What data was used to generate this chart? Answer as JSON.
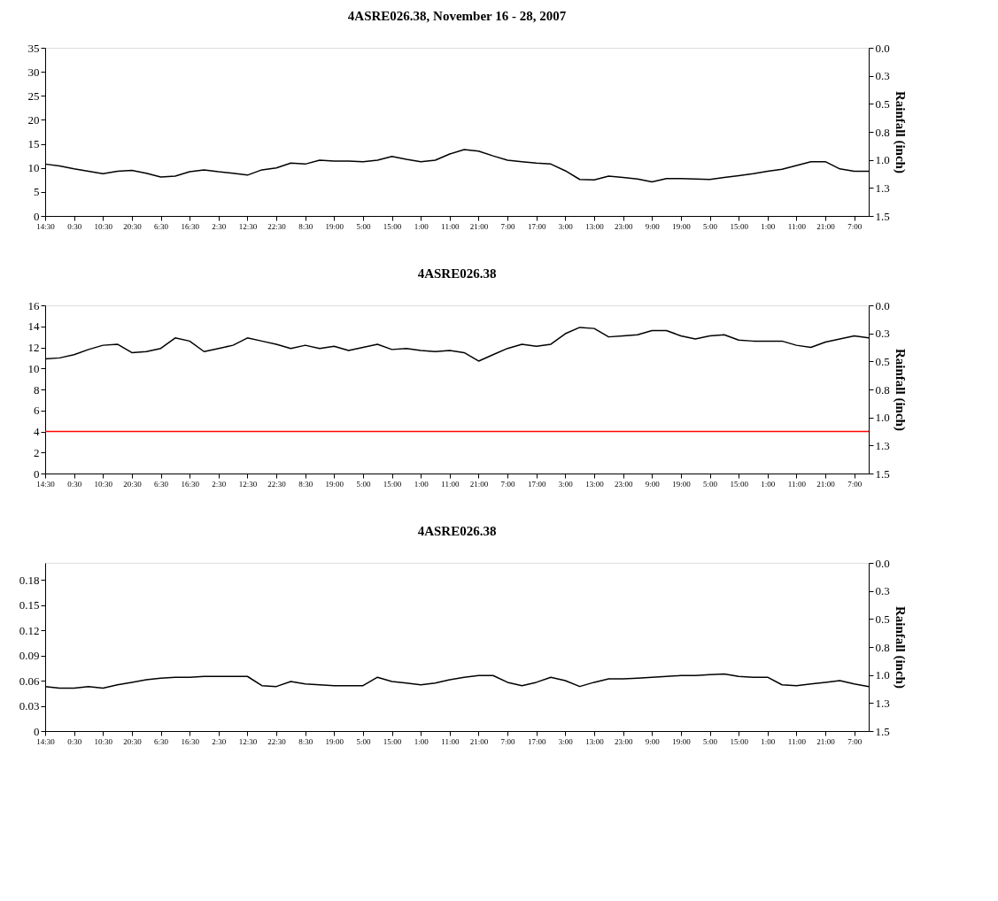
{
  "chart_data": [
    {
      "type": "line",
      "title": "4ASRE026.38, November 16 - 28, 2007",
      "y2label": "Rainfall (inch)",
      "grid": false,
      "categories": [
        "14:30",
        null,
        "0:30",
        null,
        "10:30",
        null,
        "20:30",
        null,
        "6:30",
        null,
        "16:30",
        null,
        "2:30",
        null,
        "12:30",
        null,
        "22:30",
        null,
        "8:30",
        null,
        "19:00",
        null,
        "5:00",
        null,
        "15:00",
        null,
        "1:00",
        null,
        "11:00",
        null,
        "21:00",
        null,
        "7:00",
        null,
        "17:00",
        null,
        "3:00",
        null,
        "13:00",
        null,
        "23:00",
        null,
        "9:00",
        null,
        "19:00",
        null,
        "5:00",
        null,
        "15:00",
        null,
        "1:00",
        null,
        "11:00",
        null,
        "21:00",
        null,
        "7:00",
        null
      ],
      "ylim": [
        0,
        35
      ],
      "yticks": [
        0,
        5,
        10,
        15,
        20,
        25,
        30,
        35
      ],
      "y2lim": [
        1.5,
        0
      ],
      "y2ticks": [
        {
          "value": 0,
          "label": "0.0"
        },
        {
          "value": 0.25,
          "label": "0.3"
        },
        {
          "value": 0.5,
          "label": "0.5"
        },
        {
          "value": 0.75,
          "label": "0.8"
        },
        {
          "value": 1,
          "label": "1.0"
        },
        {
          "value": 1.25,
          "label": "1.3"
        },
        {
          "value": 1.5,
          "label": "1.5"
        }
      ],
      "series": [
        {
          "color": "#000000",
          "values": [
            10.8,
            10.4,
            9.8,
            9.3,
            8.8,
            9.3,
            9.5,
            8.9,
            8.1,
            8.3,
            9.2,
            9.6,
            9.2,
            8.9,
            8.5,
            9.6,
            10.0,
            11.0,
            10.8,
            11.6,
            11.4,
            11.4,
            11.3,
            11.6,
            12.4,
            11.8,
            11.3,
            11.6,
            12.9,
            13.8,
            13.5,
            12.5,
            11.6,
            11.3,
            11.0,
            10.8,
            9.4,
            7.6,
            7.5,
            8.3,
            8.0,
            7.7,
            7.1,
            7.8,
            7.8,
            7.7,
            7.6,
            8.0,
            8.4,
            8.8,
            9.3,
            9.7,
            10.5,
            11.3,
            11.3,
            9.8,
            9.3,
            9.3
          ]
        }
      ]
    },
    {
      "type": "line",
      "title": "4ASRE026.38",
      "y2label": "Rainfall (inch)",
      "grid": false,
      "categories": [
        "14:30",
        null,
        "0:30",
        null,
        "10:30",
        null,
        "20:30",
        null,
        "6:30",
        null,
        "16:30",
        null,
        "2:30",
        null,
        "12:30",
        null,
        "22:30",
        null,
        "8:30",
        null,
        "19:00",
        null,
        "5:00",
        null,
        "15:00",
        null,
        "1:00",
        null,
        "11:00",
        null,
        "21:00",
        null,
        "7:00",
        null,
        "17:00",
        null,
        "3:00",
        null,
        "13:00",
        null,
        "23:00",
        null,
        "9:00",
        null,
        "19:00",
        null,
        "5:00",
        null,
        "15:00",
        null,
        "1:00",
        null,
        "11:00",
        null,
        "21:00",
        null,
        "7:00",
        null
      ],
      "ylim": [
        0,
        16
      ],
      "yticks": [
        0,
        2,
        4,
        6,
        8,
        10,
        12,
        14,
        16
      ],
      "y2lim": [
        1.5,
        0
      ],
      "y2ticks": [
        {
          "value": 0,
          "label": "0.0"
        },
        {
          "value": 0.25,
          "label": "0.3"
        },
        {
          "value": 0.5,
          "label": "0.5"
        },
        {
          "value": 0.75,
          "label": "0.8"
        },
        {
          "value": 1,
          "label": "1.0"
        },
        {
          "value": 1.25,
          "label": "1.3"
        },
        {
          "value": 1.5,
          "label": "1.5"
        }
      ],
      "ref_lines": [
        {
          "axis": "y",
          "value": 4,
          "color": "#ff0000"
        }
      ],
      "series": [
        {
          "color": "#000000",
          "values": [
            10.9,
            11.0,
            11.3,
            11.8,
            12.2,
            12.3,
            11.5,
            11.6,
            11.9,
            12.9,
            12.6,
            11.6,
            11.9,
            12.2,
            12.9,
            12.6,
            12.3,
            11.9,
            12.2,
            11.9,
            12.1,
            11.7,
            12.0,
            12.3,
            11.8,
            11.9,
            11.7,
            11.6,
            11.7,
            11.5,
            10.7,
            11.3,
            11.9,
            12.3,
            12.1,
            12.3,
            13.3,
            13.9,
            13.8,
            13.0,
            13.1,
            13.2,
            13.6,
            13.6,
            13.1,
            12.8,
            13.1,
            13.2,
            12.7,
            12.6,
            12.6,
            12.6,
            12.2,
            12.0,
            12.5,
            12.8,
            13.1,
            12.9
          ]
        }
      ]
    },
    {
      "type": "line",
      "title": "4ASRE026.38",
      "y2label": "Rainfall (inch)",
      "grid": false,
      "categories": [
        "14:30",
        null,
        "0:30",
        null,
        "10:30",
        null,
        "20:30",
        null,
        "6:30",
        null,
        "16:30",
        null,
        "2:30",
        null,
        "12:30",
        null,
        "22:30",
        null,
        "8:30",
        null,
        "19:00",
        null,
        "5:00",
        null,
        "15:00",
        null,
        "1:00",
        null,
        "11:00",
        null,
        "21:00",
        null,
        "7:00",
        null,
        "17:00",
        null,
        "3:00",
        null,
        "13:00",
        null,
        "23:00",
        null,
        "9:00",
        null,
        "19:00",
        null,
        "5:00",
        null,
        "15:00",
        null,
        "1:00",
        null,
        "11:00",
        null,
        "21:00",
        null,
        "7:00",
        null
      ],
      "ylim": [
        0,
        0.2
      ],
      "yticks": [
        0,
        0.03,
        0.06,
        0.09,
        0.12,
        0.15,
        0.18
      ],
      "y2lim": [
        1.5,
        0
      ],
      "y2ticks": [
        {
          "value": 0,
          "label": "0.0"
        },
        {
          "value": 0.25,
          "label": "0.3"
        },
        {
          "value": 0.5,
          "label": "0.5"
        },
        {
          "value": 0.75,
          "label": "0.8"
        },
        {
          "value": 1,
          "label": "1.0"
        },
        {
          "value": 1.25,
          "label": "1.3"
        },
        {
          "value": 1.5,
          "label": "1.5"
        }
      ],
      "series": [
        {
          "color": "#000000",
          "values": [
            0.053,
            0.051,
            0.051,
            0.053,
            0.051,
            0.055,
            0.058,
            0.061,
            0.063,
            0.064,
            0.064,
            0.065,
            0.065,
            0.065,
            0.065,
            0.054,
            0.053,
            0.059,
            0.056,
            0.055,
            0.054,
            0.054,
            0.054,
            0.064,
            0.059,
            0.057,
            0.055,
            0.057,
            0.061,
            0.064,
            0.066,
            0.066,
            0.058,
            0.054,
            0.058,
            0.064,
            0.06,
            0.053,
            0.058,
            0.062,
            0.062,
            0.063,
            0.064,
            0.065,
            0.066,
            0.066,
            0.067,
            0.068,
            0.065,
            0.064,
            0.064,
            0.055,
            0.054,
            0.056,
            0.058,
            0.06,
            0.056,
            0.053
          ]
        }
      ]
    }
  ]
}
